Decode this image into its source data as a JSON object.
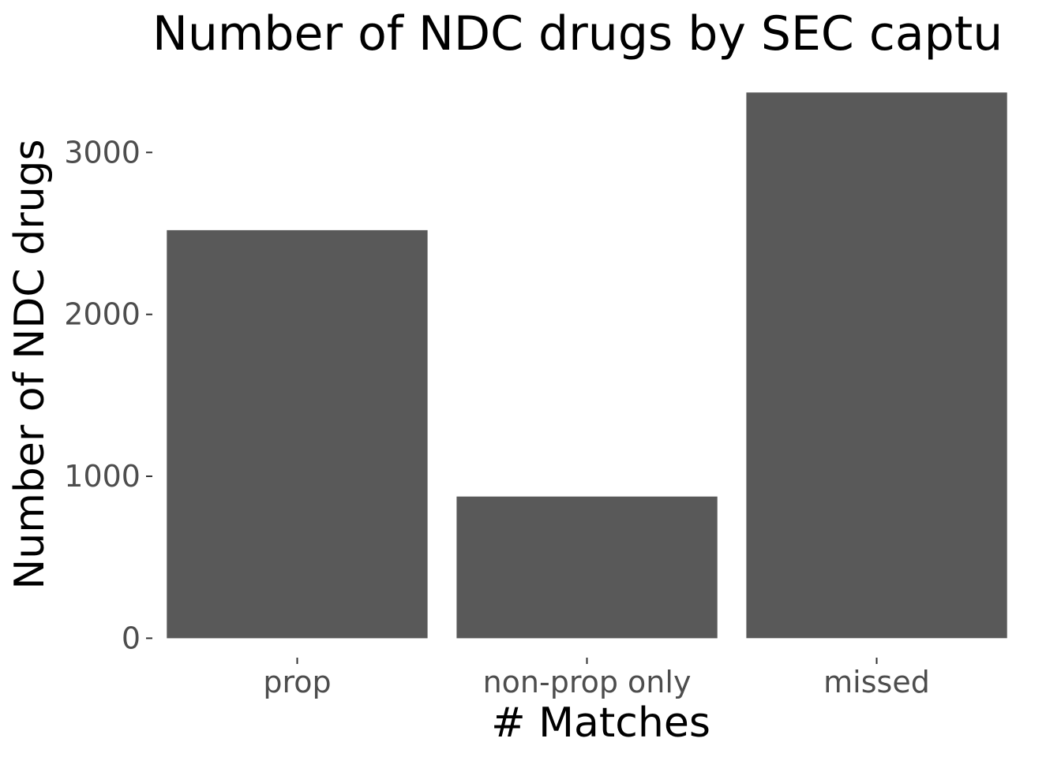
{
  "chart_data": {
    "type": "bar",
    "title": "Number of NDC drugs by SEC captu",
    "xlabel": "# Matches",
    "ylabel": "Number of NDC drugs",
    "categories": [
      "prop",
      "non-prop only",
      "missed"
    ],
    "values": [
      2520,
      875,
      3370
    ],
    "ylim": [
      -120,
      3430
    ],
    "yticks": [
      0,
      1000,
      2000,
      3000
    ],
    "ytick_labels": [
      "0",
      "1000",
      "2000",
      "3000"
    ],
    "bar_color": "#595959",
    "grid": false,
    "legend": "none"
  }
}
